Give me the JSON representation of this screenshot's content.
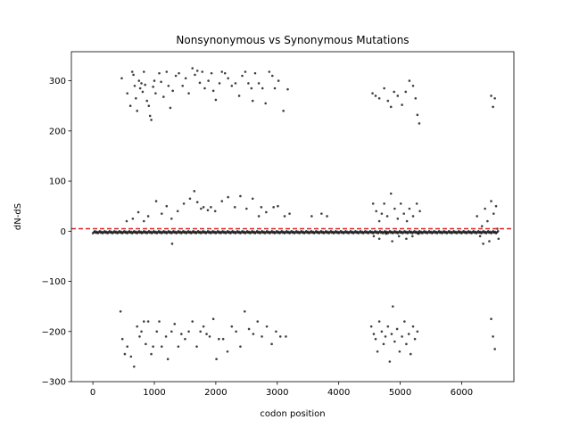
{
  "chart_data": {
    "type": "scatter",
    "title": "Nonsynonymous vs Synonymous Mutations",
    "xlabel": "codon position",
    "ylabel": "dN-dS",
    "xlim": [
      -350,
      6850
    ],
    "ylim": [
      -300,
      358
    ],
    "xticks": [
      0,
      1000,
      2000,
      3000,
      4000,
      5000,
      6000
    ],
    "yticks": [
      -300,
      -200,
      -100,
      0,
      100,
      200,
      300
    ],
    "xtick_labels": [
      "0",
      "1000",
      "2000",
      "3000",
      "4000",
      "5000",
      "6000"
    ],
    "ytick_labels": [
      "−300",
      "−200",
      "−100",
      "0",
      "100",
      "200",
      "300"
    ],
    "grid": false,
    "legend": "none",
    "point_color": "#000000",
    "reference_line": {
      "y": 5,
      "color": "#d62728",
      "style": "dashed"
    },
    "series": [
      {
        "points": [
          [
            470,
            305
          ],
          [
            560,
            275
          ],
          [
            610,
            250
          ],
          [
            640,
            318
          ],
          [
            660,
            312
          ],
          [
            680,
            290
          ],
          [
            700,
            265
          ],
          [
            720,
            240
          ],
          [
            750,
            300
          ],
          [
            770,
            285
          ],
          [
            790,
            295
          ],
          [
            810,
            278
          ],
          [
            830,
            318
          ],
          [
            850,
            292
          ],
          [
            880,
            260
          ],
          [
            910,
            250
          ],
          [
            930,
            230
          ],
          [
            950,
            222
          ],
          [
            980,
            288
          ],
          [
            1000,
            300
          ],
          [
            1020,
            275
          ],
          [
            1080,
            315
          ],
          [
            1110,
            298
          ],
          [
            1150,
            268
          ],
          [
            1200,
            318
          ],
          [
            1230,
            290
          ],
          [
            1260,
            246
          ],
          [
            1300,
            280
          ],
          [
            1350,
            310
          ],
          [
            1400,
            315
          ],
          [
            1460,
            290
          ],
          [
            1510,
            305
          ],
          [
            1560,
            275
          ],
          [
            1620,
            325
          ],
          [
            1660,
            312
          ],
          [
            1700,
            320
          ],
          [
            1740,
            296
          ],
          [
            1780,
            318
          ],
          [
            1820,
            285
          ],
          [
            1880,
            300
          ],
          [
            1930,
            315
          ],
          [
            1960,
            280
          ],
          [
            2000,
            262
          ],
          [
            2060,
            295
          ],
          [
            2100,
            318
          ],
          [
            2150,
            315
          ],
          [
            2200,
            305
          ],
          [
            2260,
            290
          ],
          [
            2320,
            295
          ],
          [
            2380,
            270
          ],
          [
            2430,
            310
          ],
          [
            2480,
            318
          ],
          [
            2530,
            295
          ],
          [
            2580,
            285
          ],
          [
            2600,
            260
          ],
          [
            2640,
            315
          ],
          [
            2700,
            295
          ],
          [
            2760,
            285
          ],
          [
            2810,
            255
          ],
          [
            2870,
            318
          ],
          [
            2920,
            310
          ],
          [
            2960,
            285
          ],
          [
            3020,
            300
          ],
          [
            3100,
            240
          ],
          [
            3170,
            283
          ],
          [
            4550,
            275
          ],
          [
            4600,
            270
          ],
          [
            4660,
            265
          ],
          [
            4740,
            285
          ],
          [
            4800,
            260
          ],
          [
            4850,
            248
          ],
          [
            4900,
            278
          ],
          [
            4960,
            270
          ],
          [
            5030,
            252
          ],
          [
            5090,
            278
          ],
          [
            5150,
            300
          ],
          [
            5210,
            290
          ],
          [
            5250,
            265
          ],
          [
            5280,
            232
          ],
          [
            5310,
            215
          ],
          [
            6480,
            270
          ],
          [
            6510,
            248
          ],
          [
            6540,
            265
          ],
          [
            550,
            20
          ],
          [
            650,
            25
          ],
          [
            740,
            38
          ],
          [
            830,
            20
          ],
          [
            900,
            30
          ],
          [
            1030,
            60
          ],
          [
            1120,
            35
          ],
          [
            1200,
            50
          ],
          [
            1280,
            25
          ],
          [
            1290,
            -25
          ],
          [
            1380,
            40
          ],
          [
            1480,
            55
          ],
          [
            1580,
            65
          ],
          [
            1650,
            80
          ],
          [
            1700,
            58
          ],
          [
            1760,
            45
          ],
          [
            1800,
            48
          ],
          [
            1870,
            42
          ],
          [
            1920,
            48
          ],
          [
            1990,
            40
          ],
          [
            2100,
            60
          ],
          [
            2200,
            68
          ],
          [
            2310,
            48
          ],
          [
            2400,
            70
          ],
          [
            2500,
            45
          ],
          [
            2600,
            65
          ],
          [
            2700,
            30
          ],
          [
            2740,
            48
          ],
          [
            2820,
            38
          ],
          [
            2940,
            48
          ],
          [
            3010,
            50
          ],
          [
            3120,
            30
          ],
          [
            3200,
            35
          ],
          [
            3560,
            30
          ],
          [
            3720,
            35
          ],
          [
            3810,
            30
          ],
          [
            4560,
            55
          ],
          [
            4610,
            40
          ],
          [
            4660,
            20
          ],
          [
            4700,
            35
          ],
          [
            4740,
            55
          ],
          [
            4790,
            30
          ],
          [
            4850,
            75
          ],
          [
            4910,
            45
          ],
          [
            4960,
            25
          ],
          [
            5010,
            55
          ],
          [
            5060,
            35
          ],
          [
            5110,
            20
          ],
          [
            5150,
            45
          ],
          [
            5210,
            30
          ],
          [
            5270,
            55
          ],
          [
            5320,
            40
          ],
          [
            4570,
            -10
          ],
          [
            4660,
            -15
          ],
          [
            4770,
            -5
          ],
          [
            4870,
            -20
          ],
          [
            4980,
            -10
          ],
          [
            5100,
            -15
          ],
          [
            5200,
            -10
          ],
          [
            5300,
            -5
          ],
          [
            6250,
            30
          ],
          [
            6300,
            -10
          ],
          [
            6330,
            10
          ],
          [
            6350,
            -25
          ],
          [
            6380,
            45
          ],
          [
            6420,
            20
          ],
          [
            6450,
            -20
          ],
          [
            6480,
            60
          ],
          [
            6520,
            35
          ],
          [
            6560,
            50
          ],
          [
            6580,
            5
          ],
          [
            6600,
            -15
          ],
          [
            450,
            -160
          ],
          [
            480,
            -215
          ],
          [
            520,
            -245
          ],
          [
            560,
            -230
          ],
          [
            620,
            -250
          ],
          [
            670,
            -270
          ],
          [
            720,
            -190
          ],
          [
            760,
            -210
          ],
          [
            790,
            -200
          ],
          [
            830,
            -180
          ],
          [
            860,
            -225
          ],
          [
            900,
            -180
          ],
          [
            950,
            -245
          ],
          [
            980,
            -230
          ],
          [
            1040,
            -200
          ],
          [
            1080,
            -180
          ],
          [
            1120,
            -230
          ],
          [
            1190,
            -210
          ],
          [
            1220,
            -255
          ],
          [
            1280,
            -200
          ],
          [
            1330,
            -185
          ],
          [
            1390,
            -230
          ],
          [
            1440,
            -205
          ],
          [
            1500,
            -215
          ],
          [
            1560,
            -200
          ],
          [
            1620,
            -180
          ],
          [
            1690,
            -230
          ],
          [
            1750,
            -200
          ],
          [
            1800,
            -190
          ],
          [
            1850,
            -205
          ],
          [
            1900,
            -210
          ],
          [
            1960,
            -175
          ],
          [
            2010,
            -255
          ],
          [
            2050,
            -215
          ],
          [
            2120,
            -215
          ],
          [
            2190,
            -240
          ],
          [
            2260,
            -190
          ],
          [
            2330,
            -200
          ],
          [
            2400,
            -230
          ],
          [
            2470,
            -160
          ],
          [
            2540,
            -195
          ],
          [
            2610,
            -205
          ],
          [
            2680,
            -180
          ],
          [
            2750,
            -210
          ],
          [
            2830,
            -190
          ],
          [
            2910,
            -225
          ],
          [
            2980,
            -200
          ],
          [
            3050,
            -210
          ],
          [
            3140,
            -210
          ],
          [
            4530,
            -190
          ],
          [
            4570,
            -205
          ],
          [
            4600,
            -215
          ],
          [
            4630,
            -240
          ],
          [
            4660,
            -180
          ],
          [
            4700,
            -200
          ],
          [
            4730,
            -225
          ],
          [
            4760,
            -210
          ],
          [
            4800,
            -190
          ],
          [
            4830,
            -260
          ],
          [
            4860,
            -205
          ],
          [
            4880,
            -150
          ],
          [
            4910,
            -220
          ],
          [
            4950,
            -195
          ],
          [
            4990,
            -240
          ],
          [
            5030,
            -210
          ],
          [
            5070,
            -180
          ],
          [
            5100,
            -225
          ],
          [
            5140,
            -205
          ],
          [
            5170,
            -245
          ],
          [
            5210,
            -190
          ],
          [
            5240,
            -215
          ],
          [
            5280,
            -200
          ],
          [
            6480,
            -175
          ],
          [
            6510,
            -210
          ],
          [
            6540,
            -235
          ]
        ]
      }
    ]
  }
}
